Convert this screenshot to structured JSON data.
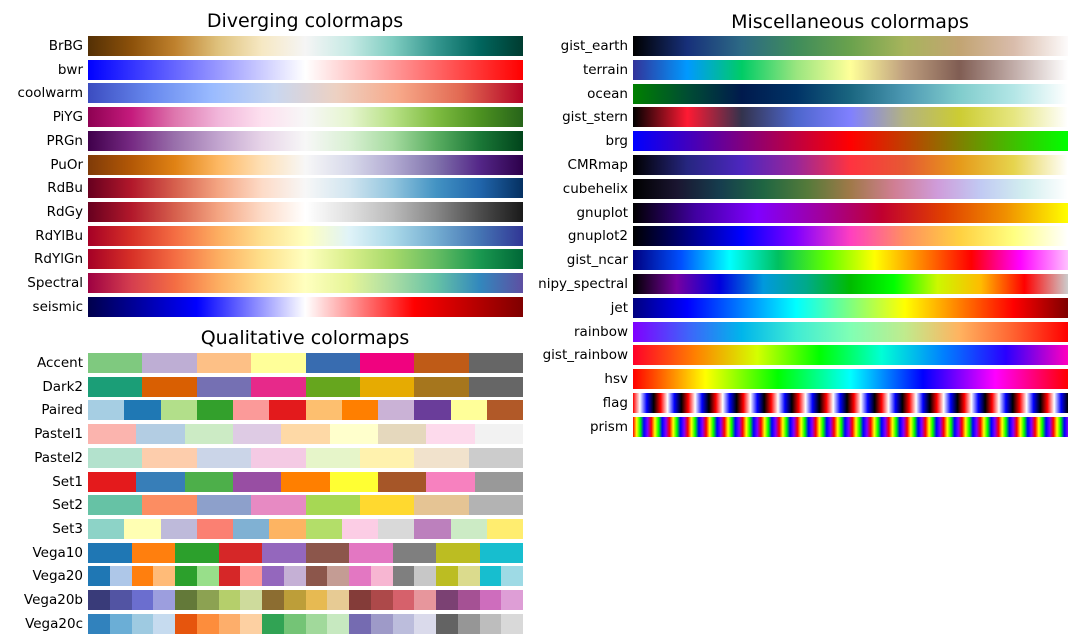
{
  "chart_data": [
    {
      "type": "heatmap",
      "title": "Diverging colormaps",
      "kind": "gradient",
      "colormaps": [
        {
          "name": "BrBG",
          "colors": [
            "#543005",
            "#8c510a",
            "#bf812d",
            "#dfc27d",
            "#f6e8c3",
            "#f5f5f5",
            "#c7eae5",
            "#80cdc1",
            "#35978f",
            "#01665e",
            "#003c30"
          ]
        },
        {
          "name": "bwr",
          "colors": [
            "#0000ff",
            "#ffffff",
            "#ff0000"
          ]
        },
        {
          "name": "coolwarm",
          "colors": [
            "#3b4cc0",
            "#6788ee",
            "#9abbff",
            "#c9d7f0",
            "#edd1c2",
            "#f7a889",
            "#e26952",
            "#b40426"
          ]
        },
        {
          "name": "PiYG",
          "colors": [
            "#8e0152",
            "#c51b7d",
            "#de77ae",
            "#f1b6da",
            "#fde0ef",
            "#f7f7f7",
            "#e6f5d0",
            "#b8e186",
            "#7fbc41",
            "#4d9221",
            "#276419"
          ]
        },
        {
          "name": "PRGn",
          "colors": [
            "#40004b",
            "#762a83",
            "#9970ab",
            "#c2a5cf",
            "#e7d4e8",
            "#f7f7f7",
            "#d9f0d3",
            "#a6dba0",
            "#5aae61",
            "#1b7837",
            "#00441b"
          ]
        },
        {
          "name": "PuOr",
          "colors": [
            "#7f3b08",
            "#b35806",
            "#e08214",
            "#fdb863",
            "#fee0b6",
            "#f7f7f7",
            "#d8daeb",
            "#b2abd2",
            "#8073ac",
            "#542788",
            "#2d004b"
          ]
        },
        {
          "name": "RdBu",
          "colors": [
            "#67001f",
            "#b2182b",
            "#d6604d",
            "#f4a582",
            "#fddbc7",
            "#f7f7f7",
            "#d1e5f0",
            "#92c5de",
            "#4393c3",
            "#2166ac",
            "#053061"
          ]
        },
        {
          "name": "RdGy",
          "colors": [
            "#67001f",
            "#b2182b",
            "#d6604d",
            "#f4a582",
            "#fddbc7",
            "#ffffff",
            "#e0e0e0",
            "#bababa",
            "#878787",
            "#4d4d4d",
            "#1a1a1a"
          ]
        },
        {
          "name": "RdYlBu",
          "colors": [
            "#a50026",
            "#d73027",
            "#f46d43",
            "#fdae61",
            "#fee090",
            "#ffffbf",
            "#e0f3f8",
            "#abd9e9",
            "#74add1",
            "#4575b4",
            "#313695"
          ]
        },
        {
          "name": "RdYlGn",
          "colors": [
            "#a50026",
            "#d73027",
            "#f46d43",
            "#fdae61",
            "#fee08b",
            "#ffffbf",
            "#d9ef8b",
            "#a6d96a",
            "#66bd63",
            "#1a9850",
            "#006837"
          ]
        },
        {
          "name": "Spectral",
          "colors": [
            "#9e0142",
            "#d53e4f",
            "#f46d43",
            "#fdae61",
            "#fee08b",
            "#ffffbf",
            "#e6f598",
            "#abdda4",
            "#66c2a5",
            "#3288bd",
            "#5e4fa2"
          ]
        },
        {
          "name": "seismic",
          "colors": [
            "#00004c",
            "#0000ff",
            "#ffffff",
            "#ff0000",
            "#7f0000"
          ]
        }
      ]
    },
    {
      "type": "heatmap",
      "title": "Qualitative colormaps",
      "kind": "discrete",
      "colormaps": [
        {
          "name": "Accent",
          "colors": [
            "#7fc97f",
            "#beaed4",
            "#fdc086",
            "#ffff99",
            "#386cb0",
            "#f0027f",
            "#bf5b17",
            "#666666"
          ]
        },
        {
          "name": "Dark2",
          "colors": [
            "#1b9e77",
            "#d95f02",
            "#7570b3",
            "#e7298a",
            "#66a61e",
            "#e6ab02",
            "#a6761d",
            "#666666"
          ]
        },
        {
          "name": "Paired",
          "colors": [
            "#a6cee3",
            "#1f78b4",
            "#b2df8a",
            "#33a02c",
            "#fb9a99",
            "#e31a1c",
            "#fdbf6f",
            "#ff7f00",
            "#cab2d6",
            "#6a3d9a",
            "#ffff99",
            "#b15928"
          ]
        },
        {
          "name": "Pastel1",
          "colors": [
            "#fbb4ae",
            "#b3cde3",
            "#ccebc5",
            "#decbe4",
            "#fed9a6",
            "#ffffcc",
            "#e5d8bd",
            "#fddaec",
            "#f2f2f2"
          ]
        },
        {
          "name": "Pastel2",
          "colors": [
            "#b3e2cd",
            "#fdcdac",
            "#cbd5e8",
            "#f4cae4",
            "#e6f5c9",
            "#fff2ae",
            "#f1e2cc",
            "#cccccc"
          ]
        },
        {
          "name": "Set1",
          "colors": [
            "#e41a1c",
            "#377eb8",
            "#4daf4a",
            "#984ea3",
            "#ff7f00",
            "#ffff33",
            "#a65628",
            "#f781bf",
            "#999999"
          ]
        },
        {
          "name": "Set2",
          "colors": [
            "#66c2a5",
            "#fc8d62",
            "#8da0cb",
            "#e78ac3",
            "#a6d854",
            "#ffd92f",
            "#e5c494",
            "#b3b3b3"
          ]
        },
        {
          "name": "Set3",
          "colors": [
            "#8dd3c7",
            "#ffffb3",
            "#bebada",
            "#fb8072",
            "#80b1d3",
            "#fdb462",
            "#b3de69",
            "#fccde5",
            "#d9d9d9",
            "#bc80bd",
            "#ccebc5",
            "#ffed6f"
          ]
        },
        {
          "name": "Vega10",
          "colors": [
            "#1f77b4",
            "#ff7f0e",
            "#2ca02c",
            "#d62728",
            "#9467bd",
            "#8c564b",
            "#e377c2",
            "#7f7f7f",
            "#bcbd22",
            "#17becf"
          ]
        },
        {
          "name": "Vega20",
          "colors": [
            "#1f77b4",
            "#aec7e8",
            "#ff7f0e",
            "#ffbb78",
            "#2ca02c",
            "#98df8a",
            "#d62728",
            "#ff9896",
            "#9467bd",
            "#c5b0d5",
            "#8c564b",
            "#c49c94",
            "#e377c2",
            "#f7b6d2",
            "#7f7f7f",
            "#c7c7c7",
            "#bcbd22",
            "#dbdb8d",
            "#17becf",
            "#9edae5"
          ]
        },
        {
          "name": "Vega20b",
          "colors": [
            "#393b79",
            "#5254a3",
            "#6b6ecf",
            "#9c9ede",
            "#637939",
            "#8ca252",
            "#b5cf6b",
            "#cedb9c",
            "#8c6d31",
            "#bd9e39",
            "#e7ba52",
            "#e7cb94",
            "#843c39",
            "#ad494a",
            "#d6616b",
            "#e7969c",
            "#7b4173",
            "#a55194",
            "#ce6dbd",
            "#de9ed6"
          ]
        },
        {
          "name": "Vega20c",
          "colors": [
            "#3182bd",
            "#6baed6",
            "#9ecae1",
            "#c6dbef",
            "#e6550d",
            "#fd8d3c",
            "#fdae6b",
            "#fdd0a2",
            "#31a354",
            "#74c476",
            "#a1d99b",
            "#c7e9c0",
            "#756bb1",
            "#9e9ac8",
            "#bcbddc",
            "#dadaeb",
            "#636363",
            "#969696",
            "#bdbdbd",
            "#d9d9d9"
          ]
        }
      ]
    },
    {
      "type": "heatmap",
      "title": "Miscellaneous colormaps",
      "kind": "gradient",
      "colormaps": [
        {
          "name": "gist_earth",
          "colors": [
            "#000000",
            "#17307a",
            "#2d6a85",
            "#3f8c5b",
            "#6aa24d",
            "#a7b45c",
            "#c2a472",
            "#d9bcab",
            "#fdfbfb"
          ]
        },
        {
          "name": "terrain",
          "colors": [
            "#333399",
            "#0099ff",
            "#00cc66",
            "#99e57f",
            "#ffff99",
            "#bf9f7f",
            "#805d53",
            "#c1aca8",
            "#ffffff"
          ]
        },
        {
          "name": "ocean",
          "colors": [
            "#008000",
            "#004d33",
            "#001a4d",
            "#003366",
            "#1a6680",
            "#4d99b3",
            "#80cccc",
            "#b3e6e6",
            "#ffffff"
          ]
        },
        {
          "name": "gist_stern",
          "colors": [
            "#000000",
            "#ff1a33",
            "#33334d",
            "#4d66cc",
            "#8080ff",
            "#b3b380",
            "#cccc33",
            "#e6e680",
            "#ffffff"
          ]
        },
        {
          "name": "brg",
          "colors": [
            "#0000ff",
            "#ff0000",
            "#00ff00"
          ]
        },
        {
          "name": "CMRmap",
          "colors": [
            "#000000",
            "#262680",
            "#4d26bf",
            "#992699",
            "#ff3340",
            "#e65933",
            "#e69a1a",
            "#e6d44d",
            "#ffffff"
          ]
        },
        {
          "name": "cubehelix",
          "colors": [
            "#000000",
            "#1a1530",
            "#163d4e",
            "#1f6642",
            "#547a3a",
            "#a07949",
            "#d07e93",
            "#cf9cda",
            "#c1caf3",
            "#d2eeef",
            "#ffffff"
          ]
        },
        {
          "name": "gnuplot",
          "colors": [
            "#000000",
            "#4000a0",
            "#8000ff",
            "#a000a0",
            "#c00030",
            "#e04000",
            "#f09000",
            "#ffff00"
          ]
        },
        {
          "name": "gnuplot2",
          "colors": [
            "#000000",
            "#000080",
            "#0000ff",
            "#8000ff",
            "#ff3fc0",
            "#ff9060",
            "#ffd040",
            "#ffff80",
            "#ffffff"
          ]
        },
        {
          "name": "gist_ncar",
          "colors": [
            "#000080",
            "#0050ff",
            "#00ffff",
            "#00c060",
            "#60ff00",
            "#ffff00",
            "#ff8000",
            "#ff0000",
            "#ff00ff",
            "#ffc0ff"
          ]
        },
        {
          "name": "nipy_spectral",
          "colors": [
            "#000000",
            "#7700a0",
            "#0000dd",
            "#0099dd",
            "#00aa88",
            "#00bb00",
            "#00ff00",
            "#ccf800",
            "#ffbb00",
            "#ff0000",
            "#cccccc"
          ]
        },
        {
          "name": "jet",
          "colors": [
            "#00007f",
            "#0000ff",
            "#007fff",
            "#00ffff",
            "#7fff7f",
            "#ffff00",
            "#ff7f00",
            "#ff0000",
            "#7f0000"
          ]
        },
        {
          "name": "rainbow",
          "colors": [
            "#8000ff",
            "#4062fa",
            "#00b5eb",
            "#40ecd4",
            "#80ffb4",
            "#c0eb8d",
            "#ffb360",
            "#ff6230",
            "#ff0000"
          ]
        },
        {
          "name": "gist_rainbow",
          "colors": [
            "#ff0029",
            "#ff8000",
            "#d4ff00",
            "#00ff00",
            "#00ffd5",
            "#0080ff",
            "#2a00ff",
            "#ff00bf"
          ]
        },
        {
          "name": "hsv",
          "colors": [
            "#ff0000",
            "#ffff00",
            "#00ff00",
            "#00ffff",
            "#0000ff",
            "#ff00ff",
            "#ff0000"
          ]
        },
        {
          "name": "flag",
          "repeat": 16,
          "colors": [
            "#ff0000",
            "#ffffff",
            "#0000ff",
            "#000000"
          ]
        },
        {
          "name": "prism",
          "repeat": 24,
          "colors": [
            "#ff0000",
            "#ffff00",
            "#00ff00",
            "#0000ff",
            "#8000ff"
          ]
        }
      ]
    }
  ]
}
